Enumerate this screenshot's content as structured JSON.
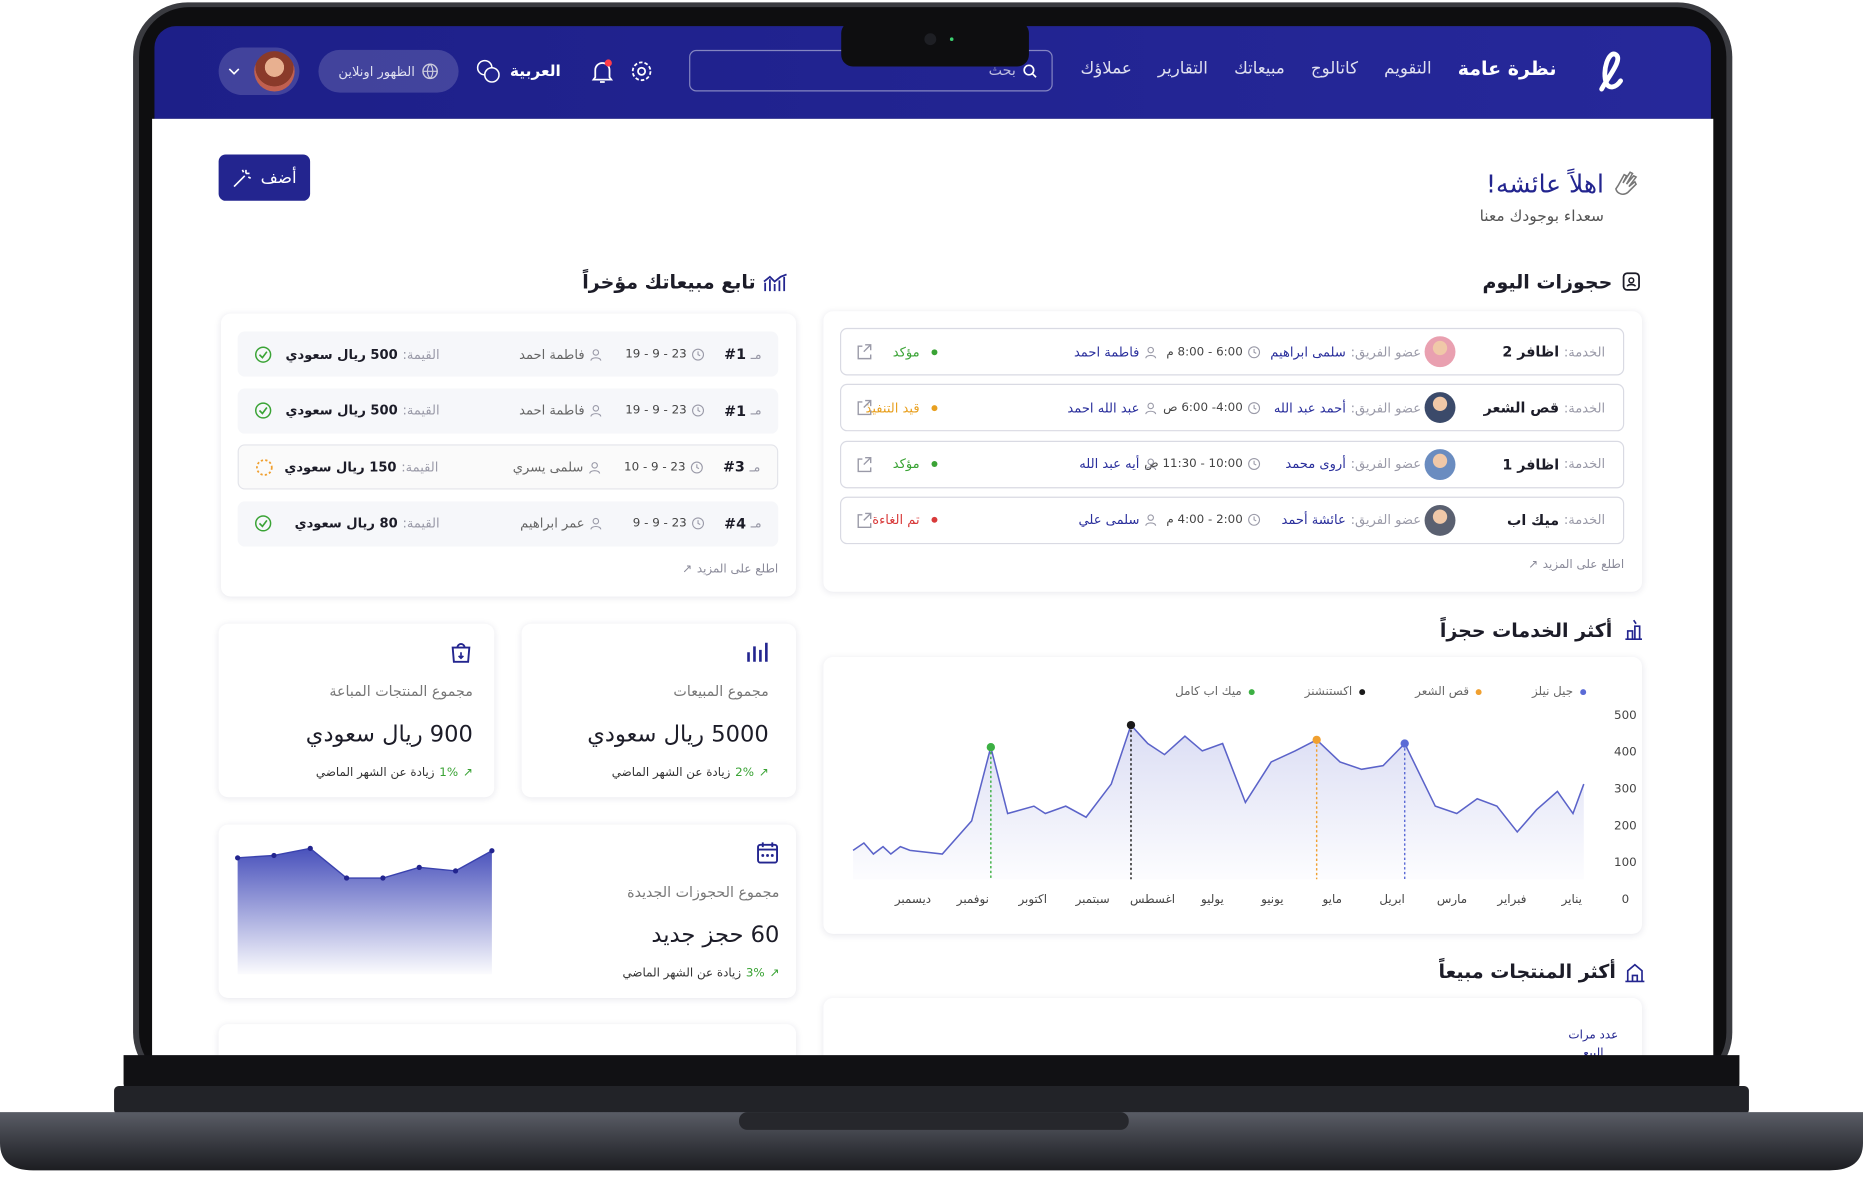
{
  "nav": {
    "items": [
      "نظرة عامة",
      "التقويم",
      "كاتالوج",
      "مبيعاتك",
      "التقارير",
      "عملاؤك"
    ],
    "search_placeholder": "بحث",
    "language": "العربية",
    "status": "الظهور اونلاين"
  },
  "header": {
    "title": "اهلاً عائشه!",
    "subtitle": "سعداء بوجودك معنا",
    "add_button": "أضف"
  },
  "bookings": {
    "title": "حجوزات اليوم",
    "service_label": "الخدمة:",
    "team_label": "عضو الفريق:",
    "rows": [
      {
        "service": "اظافر 2",
        "team": "سلمى ابراهيم",
        "time": "6:00 - 8:00 م",
        "customer": "فاطمة احمد",
        "status": "مؤكد",
        "status_color": "#3aa335"
      },
      {
        "service": "قص الشعر",
        "team": "أحمد عبد الله",
        "time": "4:00- 6:00 ص",
        "customer": "عبد الله احمد",
        "status": "قيد التنفيذ",
        "status_color": "#e8a020"
      },
      {
        "service": "اظافر 1",
        "team": "أروى محمد",
        "time": "10:00 - 11:30 ص",
        "customer": "أيه عبد الله",
        "status": "مؤكد",
        "status_color": "#3aa335"
      },
      {
        "service": "ميك اب",
        "team": "عائشة أحمد",
        "time": "2:00 - 4:00 م",
        "customer": "سلمى علي",
        "status": "تم الغاءة",
        "status_color": "#d83a3a"
      }
    ],
    "more": "اطلع على المزيد"
  },
  "sales": {
    "title": "تابع مبيعاتك مؤخراً",
    "order_prefix": "مـ",
    "value_label": "القيمة:",
    "rows": [
      {
        "order": "#1",
        "date": "23 - 9 - 19",
        "customer": "فاطمة احمد",
        "value": "500 ريال سعودي",
        "status": "done"
      },
      {
        "order": "#1",
        "date": "23 - 9 - 19",
        "customer": "فاطمة احمد",
        "value": "500 ريال سعودي",
        "status": "done"
      },
      {
        "order": "#3",
        "date": "23 - 9 - 10",
        "customer": "سلمى يسري",
        "value": "150 ريال سعودي",
        "status": "pending"
      },
      {
        "order": "#4",
        "date": "23 - 9 - 9",
        "customer": "عمر ابراهيم",
        "value": "80 ريال سعودي",
        "status": "done"
      }
    ],
    "more": "اطلع على المزيد"
  },
  "stats": {
    "total_sales": {
      "title": "مجموع المبيعات",
      "value": "5000 ريال سعودي",
      "change": "2%",
      "change_text": "زيادة عن الشهر الماضي"
    },
    "products_sold": {
      "title": "مجموع المنتجات المباعة",
      "value": "900 ريال سعودي",
      "change": "1%",
      "change_text": "زيادة عن الشهر الماضي"
    },
    "new_bookings": {
      "title": "مجموع الحجوزات الجديدة",
      "value": "60 حجز جديد",
      "change": "3%",
      "change_text": "زيادة عن الشهر الماضي",
      "trend": [
        98,
        100,
        106,
        81,
        81,
        90,
        87,
        104
      ]
    }
  },
  "services_chart": {
    "type": "line",
    "title": "أكثر الخدمات حجزاً",
    "color": "#5b63c9",
    "x": [
      13,
      12.82,
      12.66,
      12.5,
      12.37,
      12.21,
      12.05,
      11.51,
      11.02,
      10.7,
      10.42,
      9.98,
      9.79,
      9.45,
      9.11,
      8.69,
      8.36,
      8.08,
      7.8,
      7.46,
      7.17,
      6.83,
      6.45,
      6.02,
      5.62,
      5.26,
      4.87,
      4.51,
      4.15,
      3.79,
      3.28,
      2.92,
      2.58,
      2.25,
      1.91,
      1.59,
      1.24,
      0.98,
      0.8
    ],
    "values": [
      130,
      150,
      120,
      140,
      120,
      140,
      130,
      120,
      210,
      410,
      230,
      250,
      230,
      250,
      220,
      310,
      470,
      420,
      390,
      440,
      400,
      420,
      260,
      370,
      400,
      430,
      370,
      350,
      360,
      420,
      250,
      230,
      270,
      250,
      180,
      240,
      290,
      230,
      310
    ],
    "xlim": [
      13,
      0.8
    ],
    "ylim": [
      0,
      500
    ],
    "yticks": [
      0,
      100,
      200,
      300,
      400,
      500
    ],
    "xticks": [
      {
        "value": 1,
        "label": "يناير"
      },
      {
        "value": 2,
        "label": "فبراير"
      },
      {
        "value": 3,
        "label": "مارس"
      },
      {
        "value": 4,
        "label": "ابريل"
      },
      {
        "value": 5,
        "label": "مايو"
      },
      {
        "value": 6,
        "label": "يونيو"
      },
      {
        "value": 7,
        "label": "يوليو"
      },
      {
        "value": 8,
        "label": "اغسطس"
      },
      {
        "value": 9,
        "label": "سبتمبر"
      },
      {
        "value": 10,
        "label": "اكتوبر"
      },
      {
        "value": 11,
        "label": "نوفمبر"
      },
      {
        "value": 12,
        "label": "ديسمبر"
      }
    ],
    "legend": [
      {
        "name": "جيل نيلز",
        "color": "#5b6bd6",
        "point": 29
      },
      {
        "name": "قص الشعر",
        "color": "#f0a030",
        "point": 25
      },
      {
        "name": "اكستنشنز",
        "color": "#1a1a1a",
        "point": 16
      },
      {
        "name": "ميك اب كامل",
        "color": "#3cb043",
        "point": 9
      }
    ]
  },
  "top_products": {
    "title": "أكثر المنتجات مبيعاً",
    "y_label": "عدد مرات البيع"
  }
}
